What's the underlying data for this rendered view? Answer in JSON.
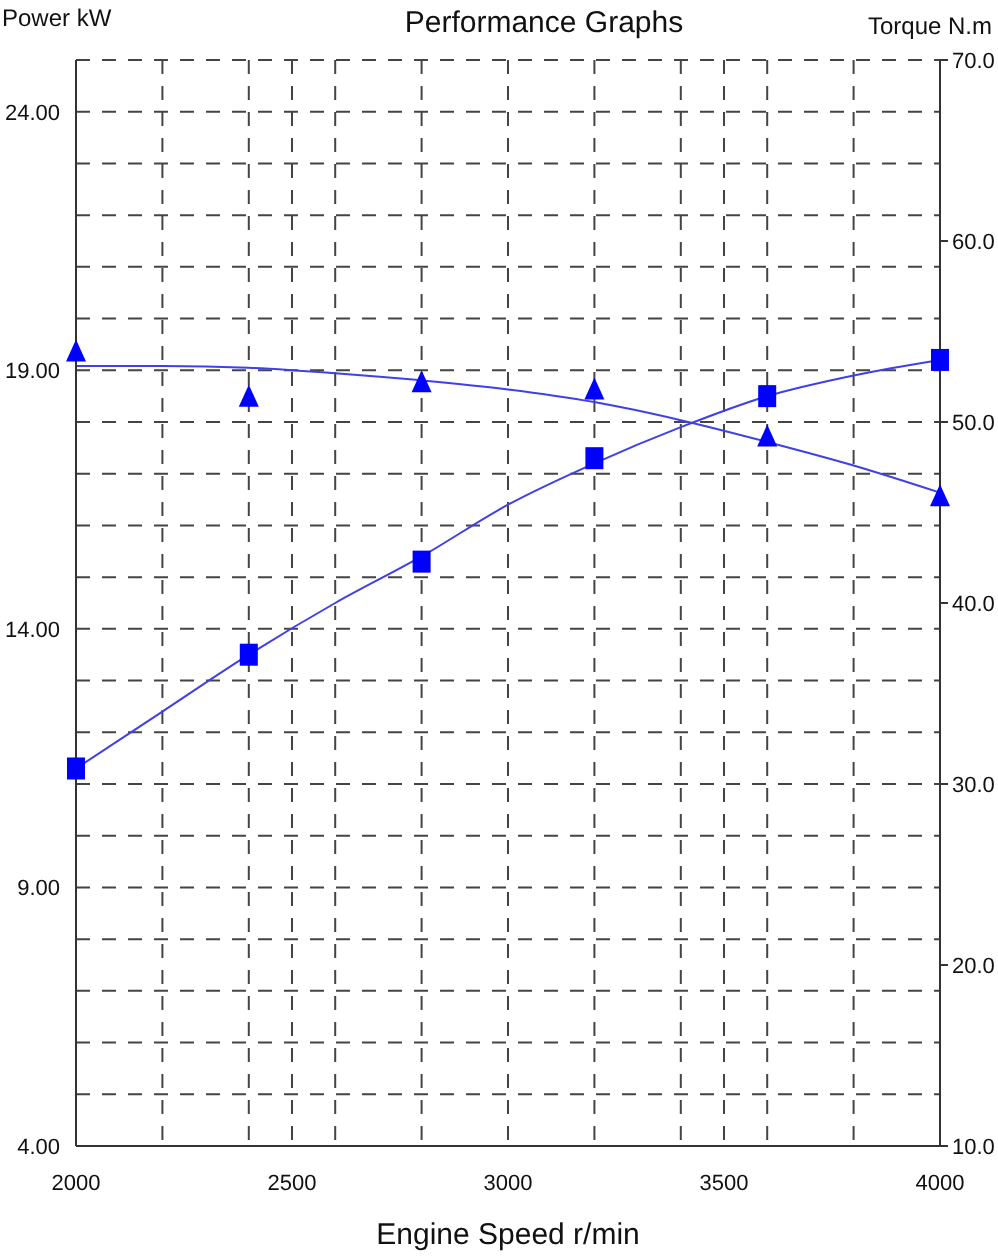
{
  "chart_data": {
    "type": "scatter",
    "title": "Performance Graphs",
    "xlabel": "Engine Speed r/min",
    "ylabel": "Power kW",
    "y2label": "Torque N.m",
    "xlim": [
      2000,
      4000
    ],
    "xticks": [
      2000,
      {
        "value": 2200,
        "label": null
      },
      {
        "value": 2400,
        "label": null
      },
      2500,
      {
        "value": 2600,
        "label": null
      },
      {
        "value": 2800,
        "label": null
      },
      3000,
      {
        "value": 3200,
        "label": null
      },
      {
        "value": 3400,
        "label": null
      },
      3500,
      {
        "value": 3600,
        "label": null
      },
      {
        "value": 3800,
        "label": null
      },
      4000
    ],
    "ylim": [
      4,
      25
    ],
    "yticks": [
      {
        "value": 4,
        "label": "4.00"
      },
      {
        "value": 5,
        "label": null
      },
      {
        "value": 6,
        "label": null
      },
      {
        "value": 7,
        "label": null
      },
      {
        "value": 8,
        "label": null
      },
      {
        "value": 9,
        "label": "9.00"
      },
      {
        "value": 10,
        "label": null
      },
      {
        "value": 11,
        "label": null
      },
      {
        "value": 12,
        "label": null
      },
      {
        "value": 13,
        "label": null
      },
      {
        "value": 14,
        "label": "14.00"
      },
      {
        "value": 15,
        "label": null
      },
      {
        "value": 16,
        "label": null
      },
      {
        "value": 17,
        "label": null
      },
      {
        "value": 18,
        "label": null
      },
      {
        "value": 19,
        "label": "19.00"
      },
      {
        "value": 20,
        "label": null
      },
      {
        "value": 21,
        "label": null
      },
      {
        "value": 22,
        "label": null
      },
      {
        "value": 23,
        "label": null
      },
      {
        "value": 24,
        "label": "24.00"
      }
    ],
    "y2lim": [
      10,
      70
    ],
    "y2ticks": [
      {
        "value": 10,
        "label": "10.0"
      },
      {
        "value": 20,
        "label": "20.0"
      },
      {
        "value": 30,
        "label": "30.0"
      },
      {
        "value": 40,
        "label": "40.0"
      },
      {
        "value": 50,
        "label": "50.0"
      },
      {
        "value": 60,
        "label": "60.0"
      },
      {
        "value": 70,
        "label": "70.0"
      }
    ],
    "grid": true,
    "series": [
      {
        "marker": "square",
        "color": "#0000ff",
        "x": [
          2000,
          2400,
          2800,
          3200,
          3600,
          4000
        ],
        "values": [
          11.3,
          13.5,
          15.3,
          17.3,
          18.5,
          19.2
        ]
      },
      {
        "type": "line",
        "marker": "none",
        "color": "#4040e8",
        "x": [
          2000,
          2200,
          2400,
          2600,
          2800,
          3000,
          3200,
          3400,
          3600,
          3800,
          4000
        ],
        "values": [
          11.3,
          12.4,
          13.5,
          14.5,
          15.4,
          16.4,
          17.2,
          17.9,
          18.5,
          18.9,
          19.2
        ]
      },
      {
        "axis": "y2",
        "marker": "triangle",
        "color": "#0000ff",
        "x": [
          2000,
          2400,
          2800,
          3200,
          3600,
          4000
        ],
        "values": [
          53.9,
          51.4,
          52.2,
          51.8,
          49.2,
          45.9
        ]
      },
      {
        "type": "line",
        "axis": "y2",
        "marker": "none",
        "color": "#4040e8",
        "x": [
          2000,
          2200,
          2400,
          2600,
          2800,
          3000,
          3200,
          3400,
          3600,
          3800,
          4000
        ],
        "values": [
          53.1,
          53.1,
          53.0,
          52.7,
          52.3,
          51.8,
          51.1,
          50.1,
          48.9,
          47.6,
          46.1
        ]
      }
    ]
  }
}
